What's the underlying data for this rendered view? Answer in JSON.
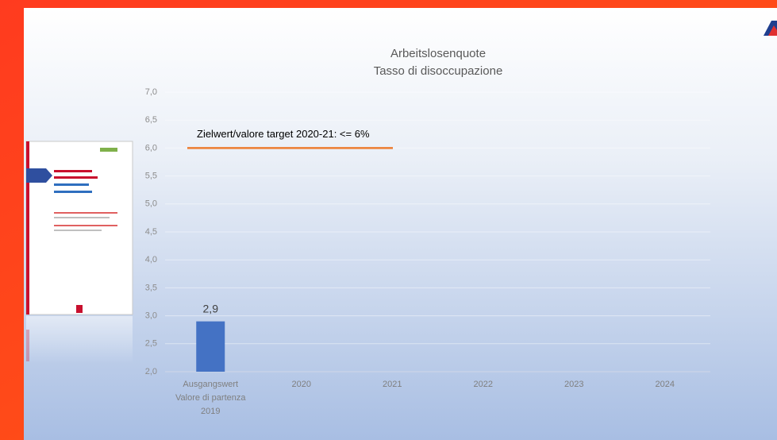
{
  "chart_data": {
    "type": "bar",
    "title": [
      "Arbeitslosenquote",
      "Tasso di disoccupazione"
    ],
    "categories": [
      [
        "Ausgangswert",
        "Valore di partenza",
        "2019"
      ],
      "2020",
      "2021",
      "2022",
      "2023",
      "2024"
    ],
    "values": [
      2.9,
      null,
      null,
      null,
      null,
      null
    ],
    "value_labels": [
      "2,9",
      null,
      null,
      null,
      null,
      null
    ],
    "color": "#4472c4",
    "ylim": [
      2,
      7
    ],
    "yticks": [
      {
        "value": 2,
        "label": "2,0"
      },
      {
        "value": 2.5,
        "label": "2,5"
      },
      {
        "value": 3,
        "label": "3,0"
      },
      {
        "value": 3.5,
        "label": "3,5"
      },
      {
        "value": 4,
        "label": "4,0"
      },
      {
        "value": 4.5,
        "label": "4,5"
      },
      {
        "value": 5,
        "label": "5,0"
      },
      {
        "value": 5.5,
        "label": "5,5"
      },
      {
        "value": 6,
        "label": "6,0"
      },
      {
        "value": 6.5,
        "label": "6,5"
      },
      {
        "value": 7,
        "label": "7,0"
      }
    ],
    "grid": true,
    "target": {
      "value": 6,
      "label": "Zielwert/valore target 2020-21:  <= 6%",
      "color": "#ed7d31"
    }
  }
}
